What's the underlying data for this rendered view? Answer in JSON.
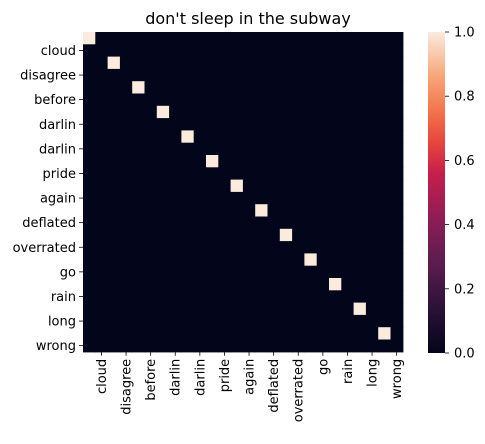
{
  "chart_data": {
    "type": "heatmap",
    "title": "don't sleep in the subway",
    "xlabel": "",
    "ylabel": "",
    "colormap": "rocket",
    "vmin": 0,
    "vmax": 1,
    "grid": false,
    "legend": "colorbar-right",
    "colorbar_ticks": [
      "0.0",
      "0.2",
      "0.4",
      "0.6",
      "0.8",
      "1.0"
    ],
    "tick_labels": [
      "cloud",
      "disagree",
      "before",
      "darlin",
      "darlin",
      "pride",
      "again",
      "deflated",
      "overrated",
      "go",
      "rain",
      "long",
      "wrong"
    ],
    "matrix": [
      [
        1,
        0,
        0,
        0,
        0,
        0,
        0,
        0,
        0,
        0,
        0,
        0,
        0,
        0,
        0,
        0,
        0,
        0,
        0,
        0,
        0,
        0,
        0,
        0,
        0,
        0
      ],
      [
        0,
        0,
        0,
        0,
        0,
        0,
        0,
        0,
        0,
        0,
        0,
        0,
        0,
        0,
        0,
        0,
        0,
        0,
        0,
        0,
        0,
        0,
        0,
        0,
        0,
        0
      ],
      [
        0,
        0,
        1,
        0,
        0,
        0,
        0,
        0,
        0,
        0,
        0,
        0,
        0,
        0,
        0,
        0,
        0,
        0,
        0,
        0,
        0,
        0,
        0,
        0,
        0,
        0
      ],
      [
        0,
        0,
        0,
        0,
        0,
        0,
        0,
        0,
        0,
        0,
        0,
        0,
        0,
        0,
        0,
        0,
        0,
        0,
        0,
        0,
        0,
        0,
        0,
        0,
        0,
        0
      ],
      [
        0,
        0,
        0,
        0,
        1,
        0,
        0,
        0,
        0,
        0,
        0,
        0,
        0,
        0,
        0,
        0,
        0,
        0,
        0,
        0,
        0,
        0,
        0,
        0,
        0,
        0
      ],
      [
        0,
        0,
        0,
        0,
        0,
        0,
        0,
        0,
        0,
        0,
        0,
        0,
        0,
        0,
        0,
        0,
        0,
        0,
        0,
        0,
        0,
        0,
        0,
        0,
        0,
        0
      ],
      [
        0,
        0,
        0,
        0,
        0,
        0,
        1,
        0,
        0,
        0,
        0,
        0,
        0,
        0,
        0,
        0,
        0,
        0,
        0,
        0,
        0,
        0,
        0,
        0,
        0,
        0
      ],
      [
        0,
        0,
        0,
        0,
        0,
        0,
        0,
        0,
        0,
        0,
        0,
        0,
        0,
        0,
        0,
        0,
        0,
        0,
        0,
        0,
        0,
        0,
        0,
        0,
        0,
        0
      ],
      [
        0,
        0,
        0,
        0,
        0,
        0,
        0,
        0,
        1,
        0,
        0,
        0,
        0,
        0,
        0,
        0,
        0,
        0,
        0,
        0,
        0,
        0,
        0,
        0,
        0,
        0
      ],
      [
        0,
        0,
        0,
        0,
        0,
        0,
        0,
        0,
        0,
        0,
        0,
        0,
        0,
        0,
        0,
        0,
        0,
        0,
        0,
        0,
        0,
        0,
        0,
        0,
        0,
        0
      ],
      [
        0,
        0,
        0,
        0,
        0,
        0,
        0,
        0,
        0,
        0,
        1,
        0,
        0,
        0,
        0,
        0,
        0,
        0,
        0,
        0,
        0,
        0,
        0,
        0,
        0,
        0
      ],
      [
        0,
        0,
        0,
        0,
        0,
        0,
        0,
        0,
        0,
        0,
        0,
        0,
        0,
        0,
        0,
        0,
        0,
        0,
        0,
        0,
        0,
        0,
        0,
        0,
        0,
        0
      ],
      [
        0,
        0,
        0,
        0,
        0,
        0,
        0,
        0,
        0,
        0,
        0,
        0,
        1,
        0,
        0,
        0,
        0,
        0,
        0,
        0,
        0,
        0,
        0,
        0,
        0,
        0
      ],
      [
        0,
        0,
        0,
        0,
        0,
        0,
        0,
        0,
        0,
        0,
        0,
        0,
        0,
        0,
        0,
        0,
        0,
        0,
        0,
        0,
        0,
        0,
        0,
        0,
        0,
        0
      ],
      [
        0,
        0,
        0,
        0,
        0,
        0,
        0,
        0,
        0,
        0,
        0,
        0,
        0,
        0,
        1,
        0,
        0,
        0,
        0,
        0,
        0,
        0,
        0,
        0,
        0,
        0
      ],
      [
        0,
        0,
        0,
        0,
        0,
        0,
        0,
        0,
        0,
        0,
        0,
        0,
        0,
        0,
        0,
        0,
        0,
        0,
        0,
        0,
        0,
        0,
        0,
        0,
        0,
        0
      ],
      [
        0,
        0,
        0,
        0,
        0,
        0,
        0,
        0,
        0,
        0,
        0,
        0,
        0,
        0,
        0,
        0,
        1,
        0,
        0,
        0,
        0,
        0,
        0,
        0,
        0,
        0
      ],
      [
        0,
        0,
        0,
        0,
        0,
        0,
        0,
        0,
        0,
        0,
        0,
        0,
        0,
        0,
        0,
        0,
        0,
        0,
        0,
        0,
        0,
        0,
        0,
        0,
        0,
        0
      ],
      [
        0,
        0,
        0,
        0,
        0,
        0,
        0,
        0,
        0,
        0,
        0,
        0,
        0,
        0,
        0,
        0,
        0,
        0,
        1,
        0,
        0,
        0,
        0,
        0,
        0,
        0
      ],
      [
        0,
        0,
        0,
        0,
        0,
        0,
        0,
        0,
        0,
        0,
        0,
        0,
        0,
        0,
        0,
        0,
        0,
        0,
        0,
        0,
        0,
        0,
        0,
        0,
        0,
        0
      ],
      [
        0,
        0,
        0,
        0,
        0,
        0,
        0,
        0,
        0,
        0,
        0,
        0,
        0,
        0,
        0,
        0,
        0,
        0,
        0,
        0,
        1,
        0,
        0,
        0,
        0,
        0
      ],
      [
        0,
        0,
        0,
        0,
        0,
        0,
        0,
        0,
        0,
        0,
        0,
        0,
        0,
        0,
        0,
        0,
        0,
        0,
        0,
        0,
        0,
        0,
        0,
        0,
        0,
        0
      ],
      [
        0,
        0,
        0,
        0,
        0,
        0,
        0,
        0,
        0,
        0,
        0,
        0,
        0,
        0,
        0,
        0,
        0,
        0,
        0,
        0,
        0,
        0,
        1,
        0,
        0,
        0
      ],
      [
        0,
        0,
        0,
        0,
        0,
        0,
        0,
        0,
        0,
        0,
        0,
        0,
        0,
        0,
        0,
        0,
        0,
        0,
        0,
        0,
        0,
        0,
        0,
        0,
        0,
        0
      ],
      [
        0,
        0,
        0,
        0,
        0,
        0,
        0,
        0,
        0,
        0,
        0,
        0,
        0,
        0,
        0,
        0,
        0,
        0,
        0,
        0,
        0,
        0,
        0,
        0,
        1,
        0
      ],
      [
        0,
        0,
        0,
        0,
        0,
        0,
        0,
        0,
        0,
        0,
        0,
        0,
        0,
        0,
        0,
        0,
        0,
        0,
        0,
        0,
        0,
        0,
        0,
        0,
        0,
        0
      ]
    ]
  }
}
